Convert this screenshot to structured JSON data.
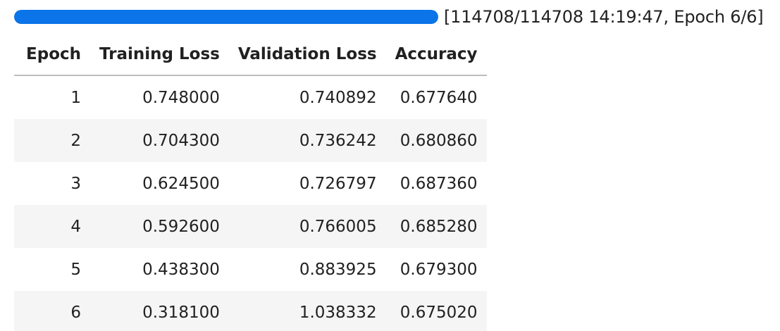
{
  "progress": {
    "fraction": 1.0,
    "current": 114708,
    "total": 114708,
    "status_text": "[114708/114708 14:19:47, Epoch 6/6]",
    "bar_color": "#0a74e8"
  },
  "table": {
    "headers": {
      "epoch": "Epoch",
      "training_loss": "Training Loss",
      "validation_loss": "Validation Loss",
      "accuracy": "Accuracy"
    },
    "rows": [
      {
        "epoch": "1",
        "training_loss": "0.748000",
        "validation_loss": "0.740892",
        "accuracy": "0.677640"
      },
      {
        "epoch": "2",
        "training_loss": "0.704300",
        "validation_loss": "0.736242",
        "accuracy": "0.680860"
      },
      {
        "epoch": "3",
        "training_loss": "0.624500",
        "validation_loss": "0.726797",
        "accuracy": "0.687360"
      },
      {
        "epoch": "4",
        "training_loss": "0.592600",
        "validation_loss": "0.766005",
        "accuracy": "0.685280"
      },
      {
        "epoch": "5",
        "training_loss": "0.438300",
        "validation_loss": "0.883925",
        "accuracy": "0.679300"
      },
      {
        "epoch": "6",
        "training_loss": "0.318100",
        "validation_loss": "1.038332",
        "accuracy": "0.675020"
      }
    ]
  }
}
